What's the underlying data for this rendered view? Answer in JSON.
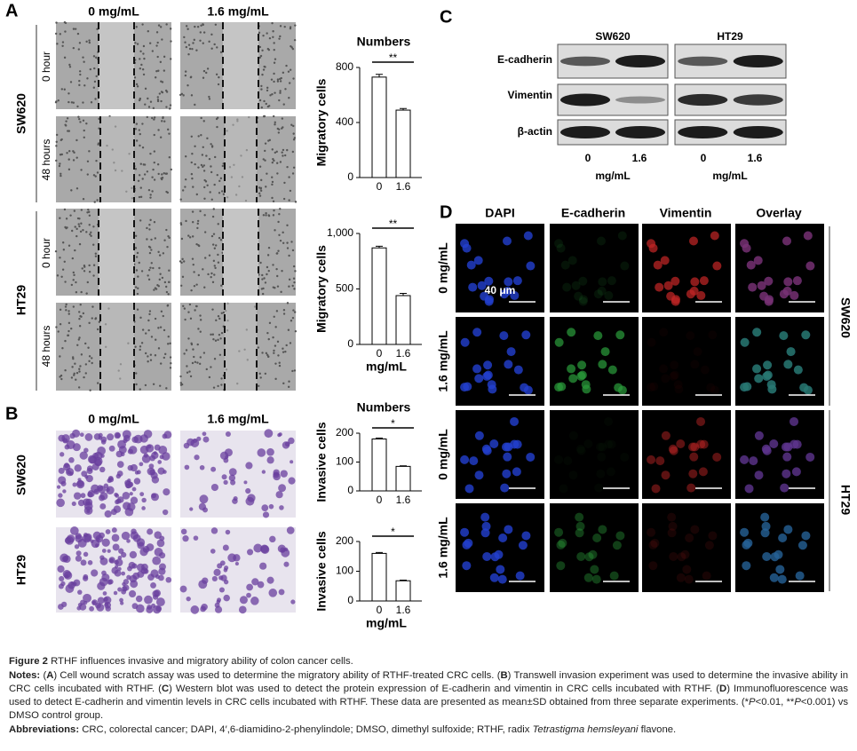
{
  "chart_data": [
    {
      "type": "bar",
      "title": "Numbers",
      "y_label": "Migratory cells",
      "categories": [
        "0",
        "1.6"
      ],
      "values": [
        730,
        490
      ],
      "errors": [
        20,
        12
      ],
      "ylim": [
        0,
        800
      ],
      "yticks": [
        0,
        400,
        800
      ],
      "significance": "**"
    },
    {
      "type": "bar",
      "y_label": "Migratory cells",
      "x_label": "mg/mL",
      "categories": [
        "0",
        "1.6"
      ],
      "values": [
        870,
        440
      ],
      "errors": [
        15,
        20
      ],
      "ylim": [
        0,
        1000
      ],
      "yticks": [
        0,
        500,
        {
          "value": 1000,
          "label": "1,000"
        }
      ],
      "significance": "**"
    },
    {
      "type": "bar",
      "title": "Numbers",
      "y_label": "Invasive cells",
      "categories": [
        "0",
        "1.6"
      ],
      "values": [
        180,
        85
      ],
      "errors": [
        3,
        2
      ],
      "ylim": [
        0,
        200
      ],
      "yticks": [
        0,
        100,
        200
      ],
      "significance": "*"
    },
    {
      "type": "bar",
      "y_label": "Invasive cells",
      "x_label": "mg/mL",
      "categories": [
        "0",
        "1.6"
      ],
      "values": [
        160,
        68
      ],
      "errors": [
        3,
        2
      ],
      "ylim": [
        0,
        200
      ],
      "yticks": [
        0,
        100,
        200
      ],
      "significance": "*"
    }
  ],
  "panel_a": {
    "letter": "A",
    "columns": [
      "0 mg/mL",
      "1.6 mg/mL"
    ],
    "rows": [
      "SW620",
      "HT29"
    ],
    "times": [
      "0 hour",
      "48 hours",
      "0 hour",
      "48 hours"
    ]
  },
  "panel_b": {
    "letter": "B",
    "columns": [
      "0 mg/mL",
      "1.6 mg/mL"
    ],
    "rows": [
      "SW620",
      "HT29"
    ]
  },
  "panel_c": {
    "letter": "C",
    "cell_lines": [
      "SW620",
      "HT29"
    ],
    "proteins": [
      "E-cadherin",
      "Vimentin",
      "β-actin"
    ],
    "doses": [
      "0",
      "1.6",
      "0",
      "1.6"
    ],
    "units": [
      "mg/mL",
      "mg/mL"
    ]
  },
  "panel_d": {
    "letter": "D",
    "columns": [
      "DAPI",
      "E-cadherin",
      "Vimentin",
      "Overlay"
    ],
    "rows": [
      "0 mg/mL",
      "1.6 mg/mL",
      "0 mg/mL",
      "1.6 mg/mL"
    ],
    "cell_lines": [
      "SW620",
      "HT29"
    ],
    "scale_bar": "40 μm"
  },
  "caption": {
    "figure_label": "Figure 2",
    "figure_title": " RTHF influences invasive and migratory ability of colon cancer cells.",
    "notes": [
      "Notes:",
      " (",
      "A",
      ") Cell wound scratch assay was used to determine the migratory ability of RTHF-treated CRC cells. (",
      "B",
      ") Transwell invasion experiment was used to determine the invasive ability in CRC cells incubated with RTHF. (",
      "C",
      ") Western blot was used to detect the protein expression of E-cadherin and vimentin in CRC cells incubated with RTHF. (",
      "D",
      ") Immunofluorescence was used to detect E-cadherin and vimentin levels in CRC cells incubated with RTHF. These data are presented as mean±SD obtained from three separate experiments. (*",
      "P",
      "<0.01, **",
      "P",
      "<0.001) vs DMSO control group."
    ],
    "abbreviations": [
      "Abbreviations:",
      " CRC, colorectal cancer; DAPI, 4′,6-diamidino-2-phenylindole; DMSO, dimethyl sulfoxide; RTHF, radix ",
      "Tetrastigma hemsleyani",
      " flavone."
    ]
  }
}
